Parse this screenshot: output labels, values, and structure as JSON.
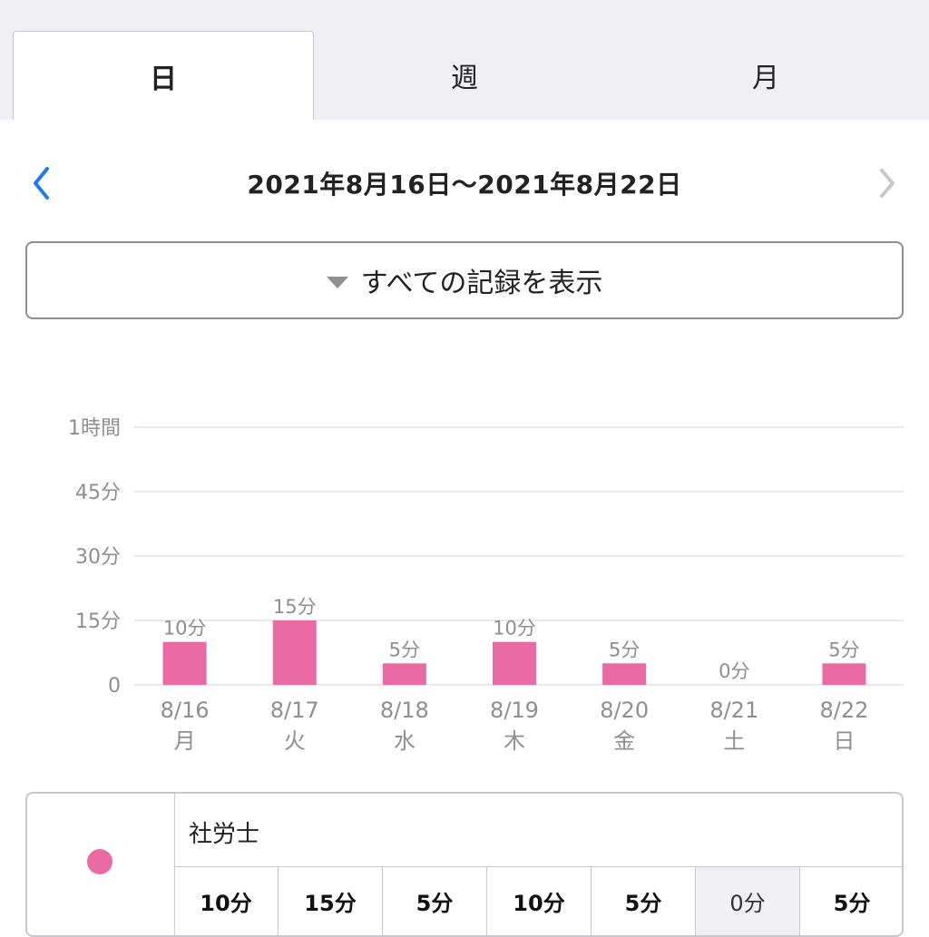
{
  "tabs": [
    {
      "label": "日",
      "active": true
    },
    {
      "label": "週",
      "active": false
    },
    {
      "label": "月",
      "active": false
    }
  ],
  "nav": {
    "range": "2021年8月16日〜2021年8月22日",
    "prev_icon": "chevron-left-icon",
    "next_icon": "chevron-right-icon",
    "accent": "#1a7cf0",
    "disabled": "#c7c7cc"
  },
  "filter": {
    "label": "すべての記録を表示",
    "icon": "triangle-down-icon"
  },
  "chart_data": {
    "type": "bar",
    "categories": [
      "8/16",
      "8/17",
      "8/18",
      "8/19",
      "8/20",
      "8/21",
      "8/22"
    ],
    "weekdays": [
      "月",
      "火",
      "水",
      "木",
      "金",
      "土",
      "日"
    ],
    "values": [
      10,
      15,
      5,
      10,
      5,
      0,
      5
    ],
    "data_labels": [
      "10分",
      "15分",
      "5分",
      "10分",
      "5分",
      "0分",
      "5分"
    ],
    "yticks": [
      0,
      15,
      30,
      45,
      60
    ],
    "ytick_labels": [
      "0",
      "15分",
      "30分",
      "45分",
      "1時間"
    ],
    "ylim": [
      0,
      60
    ],
    "grid": true,
    "bar_color": "#ea6aa3"
  },
  "legend": {
    "name": "社労士",
    "color": "#ea6aa3",
    "values": [
      "10分",
      "15分",
      "5分",
      "10分",
      "5分",
      "0分",
      "5分"
    ]
  }
}
